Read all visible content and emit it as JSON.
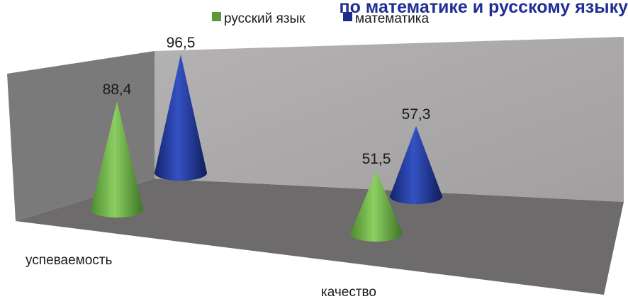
{
  "colors": {
    "series1": "#5a9a3a",
    "series2": "#1b2f86",
    "title": "#1f2f96",
    "wall_left": "#7a7a7a",
    "wall_back": "#a9a7a7",
    "floor": "#6d6b6b"
  },
  "chart_data": {
    "type": "bar",
    "shape": "cone-3d",
    "title": "по математике и русскому языку",
    "categories": [
      "успеваемость",
      "качество"
    ],
    "series": [
      {
        "name": "русский язык",
        "values": [
          88.4,
          51.5
        ],
        "labels": [
          "88,4",
          "51,5"
        ]
      },
      {
        "name": "математика",
        "values": [
          96.5,
          57.3
        ],
        "labels": [
          "96,5",
          "57,3"
        ]
      }
    ],
    "ylim": [
      0,
      100
    ],
    "grid": false,
    "legend_position": "top"
  }
}
